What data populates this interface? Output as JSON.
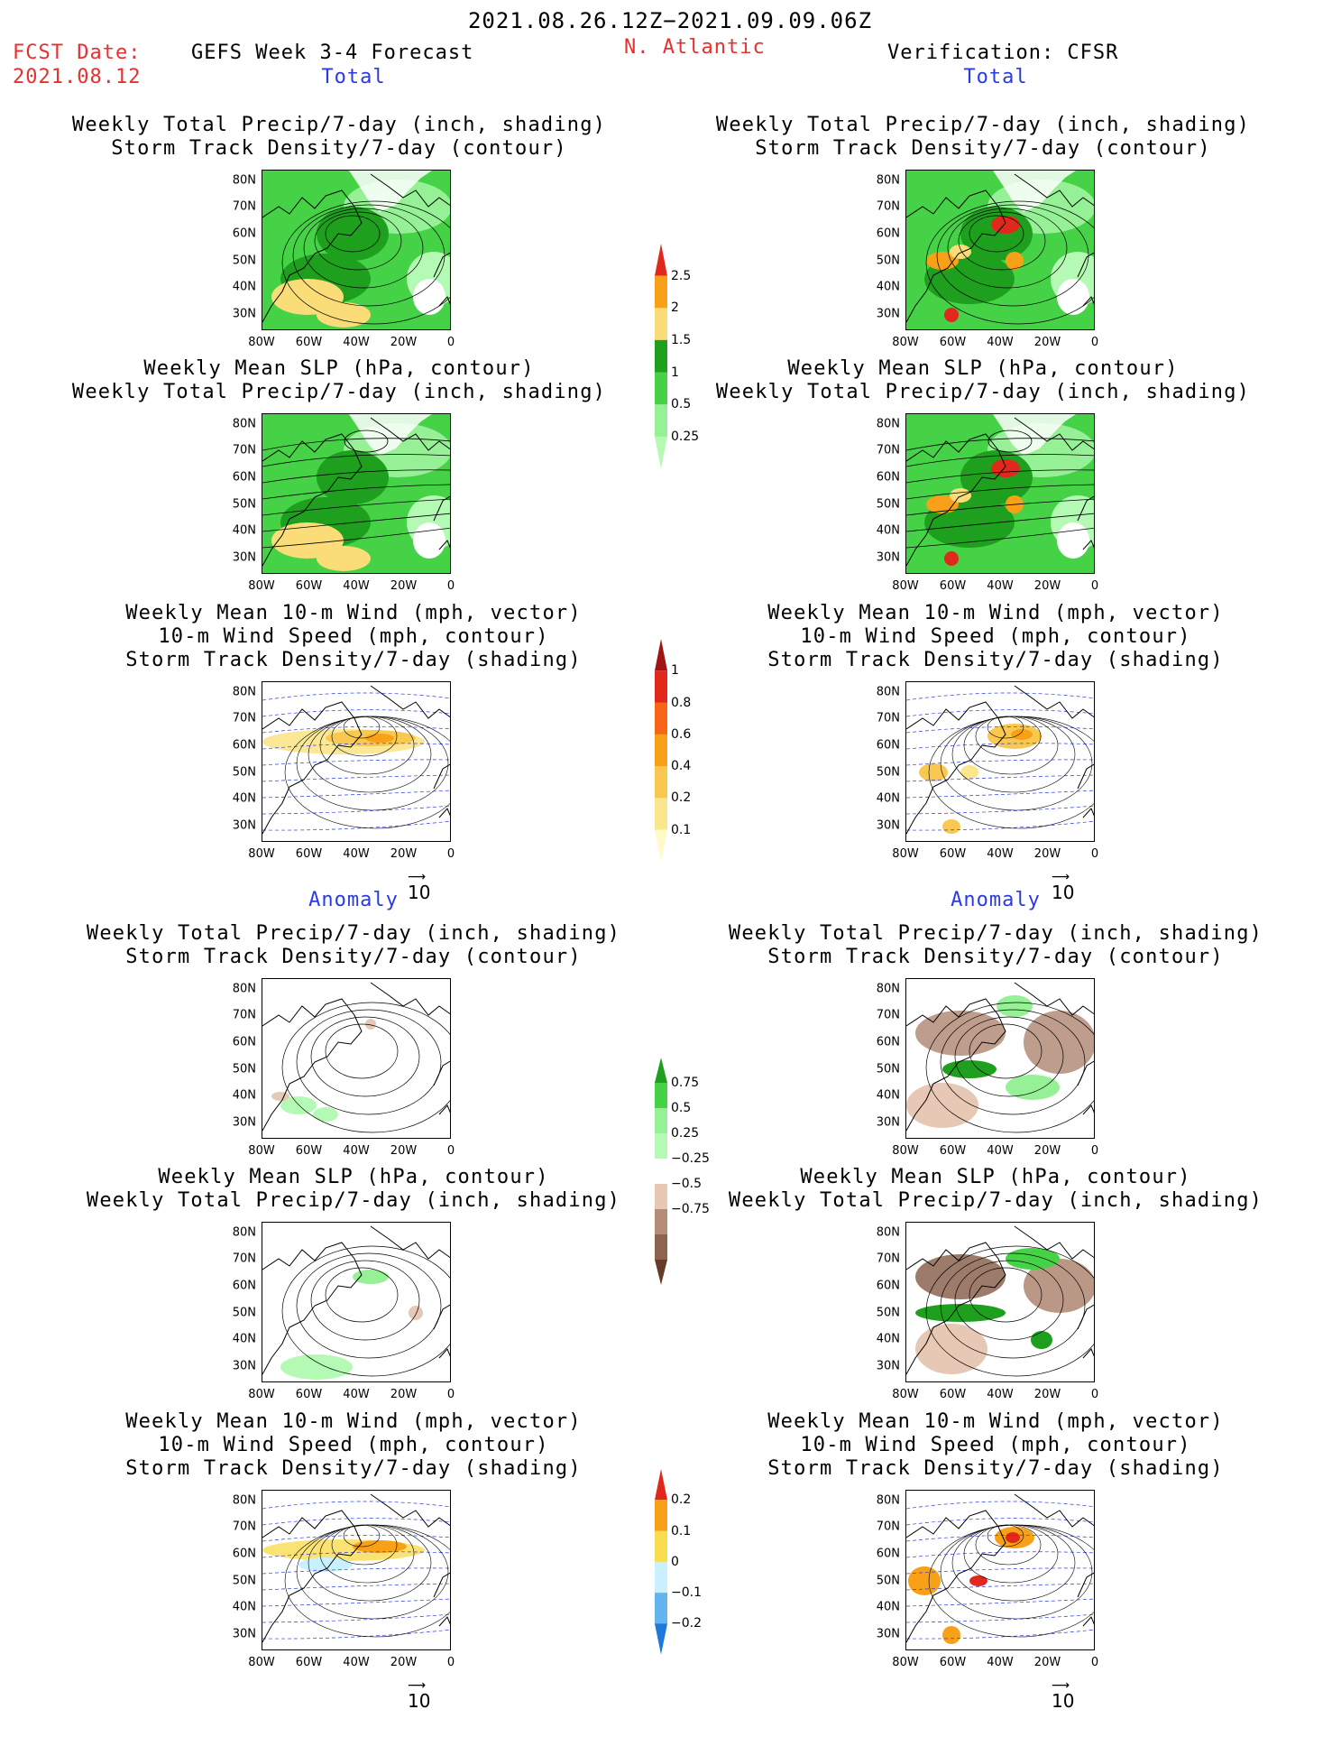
{
  "header": {
    "date_range": "2021.08.26.12Z−2021.09.09.06Z",
    "fcst_label": "FCST Date:",
    "fcst_date": "2021.08.12",
    "product": "GEFS Week 3-4 Forecast",
    "region": "N. Atlantic",
    "verification": "Verification: CFSR"
  },
  "sections": {
    "total": "Total",
    "anomaly": "Anomaly"
  },
  "titles": {
    "precip_storm": [
      "Weekly Total Precip/7-day (inch, shading)",
      "Storm Track Density/7-day (contour)"
    ],
    "slp_precip": [
      "Weekly Mean SLP (hPa, contour)",
      "Weekly Total Precip/7-day (inch, shading)"
    ],
    "wind": [
      "Weekly Mean 10-m Wind (mph, vector)",
      "10-m Wind Speed (mph, contour)",
      "Storm Track Density/7-day (shading)"
    ]
  },
  "axes": {
    "lat_labels": [
      "80N",
      "70N",
      "60N",
      "50N",
      "40N",
      "30N"
    ],
    "lon_labels": [
      "80W",
      "60W",
      "40W",
      "20W",
      "0"
    ]
  },
  "vector_ref": "10",
  "colorbars": {
    "precip_total": {
      "labels": [
        "2.5",
        "2",
        "1.5",
        "1",
        "0.5",
        "0.25"
      ],
      "colors": [
        "#e0281c",
        "#f8a018",
        "#fadc78",
        "#1ea01e",
        "#46d246",
        "#96f096",
        "#b4fab4"
      ]
    },
    "storm_total": {
      "labels": [
        "1",
        "0.8",
        "0.6",
        "0.4",
        "0.2",
        "0.1"
      ],
      "colors": [
        "#a01414",
        "#e0281c",
        "#f86418",
        "#f8a018",
        "#f8c850",
        "#fae68c",
        "#fffac8"
      ]
    },
    "precip_anom": {
      "labels": [
        "0.75",
        "0.5",
        "0.25",
        "−0.25",
        "−0.5",
        "−0.75"
      ],
      "colors": [
        "#1ea01e",
        "#46d246",
        "#96f096",
        "#b4fab4",
        "#ffffff",
        "#e6c8b4",
        "#b48c78",
        "#8c6450",
        "#643c28"
      ]
    },
    "storm_anom": {
      "labels": [
        "0.2",
        "0.1",
        "0",
        "−0.1",
        "−0.2"
      ],
      "colors": [
        "#e0281c",
        "#f8a018",
        "#fadc50",
        "#c8f0ff",
        "#64b4f0",
        "#1e78dc"
      ]
    }
  }
}
